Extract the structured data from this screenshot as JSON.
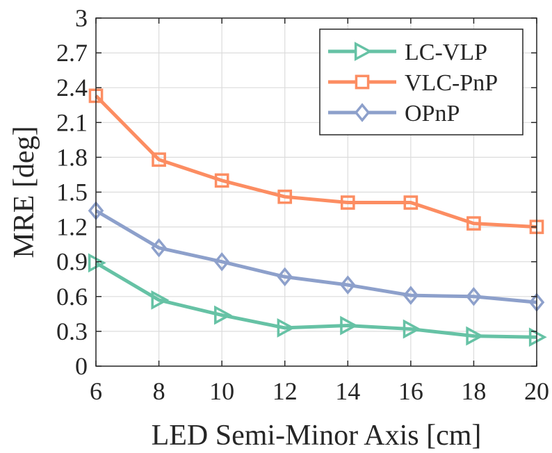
{
  "chart_data": {
    "type": "line",
    "title": "",
    "xlabel": "LED Semi-Minor Axis [cm]",
    "ylabel": "MRE [deg]",
    "x": [
      6,
      8,
      10,
      12,
      14,
      16,
      18,
      20
    ],
    "xlim": [
      6,
      20
    ],
    "ylim": [
      0,
      3
    ],
    "xticks": [
      6,
      8,
      10,
      12,
      14,
      16,
      18,
      20
    ],
    "yticks": [
      0,
      0.3,
      0.6,
      0.9,
      1.2,
      1.5,
      1.8,
      2.1,
      2.4,
      2.7,
      3
    ],
    "xtick_labels": [
      "6",
      "8",
      "10",
      "12",
      "14",
      "16",
      "18",
      "20"
    ],
    "ytick_labels": [
      "0",
      "0.3",
      "0.6",
      "0.9",
      "1.2",
      "1.5",
      "1.8",
      "2.1",
      "2.4",
      "2.7",
      "3"
    ],
    "grid": true,
    "legend_position": "top-right",
    "series": [
      {
        "name": "LC-VLP",
        "color": "#66c2a5",
        "marker": "triangle-right",
        "values": [
          0.89,
          0.57,
          0.44,
          0.33,
          0.35,
          0.32,
          0.26,
          0.25
        ]
      },
      {
        "name": "VLC-PnP",
        "color": "#fc8d62",
        "marker": "square",
        "values": [
          2.33,
          1.78,
          1.6,
          1.46,
          1.41,
          1.41,
          1.23,
          1.2
        ]
      },
      {
        "name": "OPnP",
        "color": "#8da0cb",
        "marker": "diamond",
        "values": [
          1.34,
          1.02,
          0.9,
          0.77,
          0.7,
          0.61,
          0.6,
          0.55
        ]
      }
    ]
  }
}
